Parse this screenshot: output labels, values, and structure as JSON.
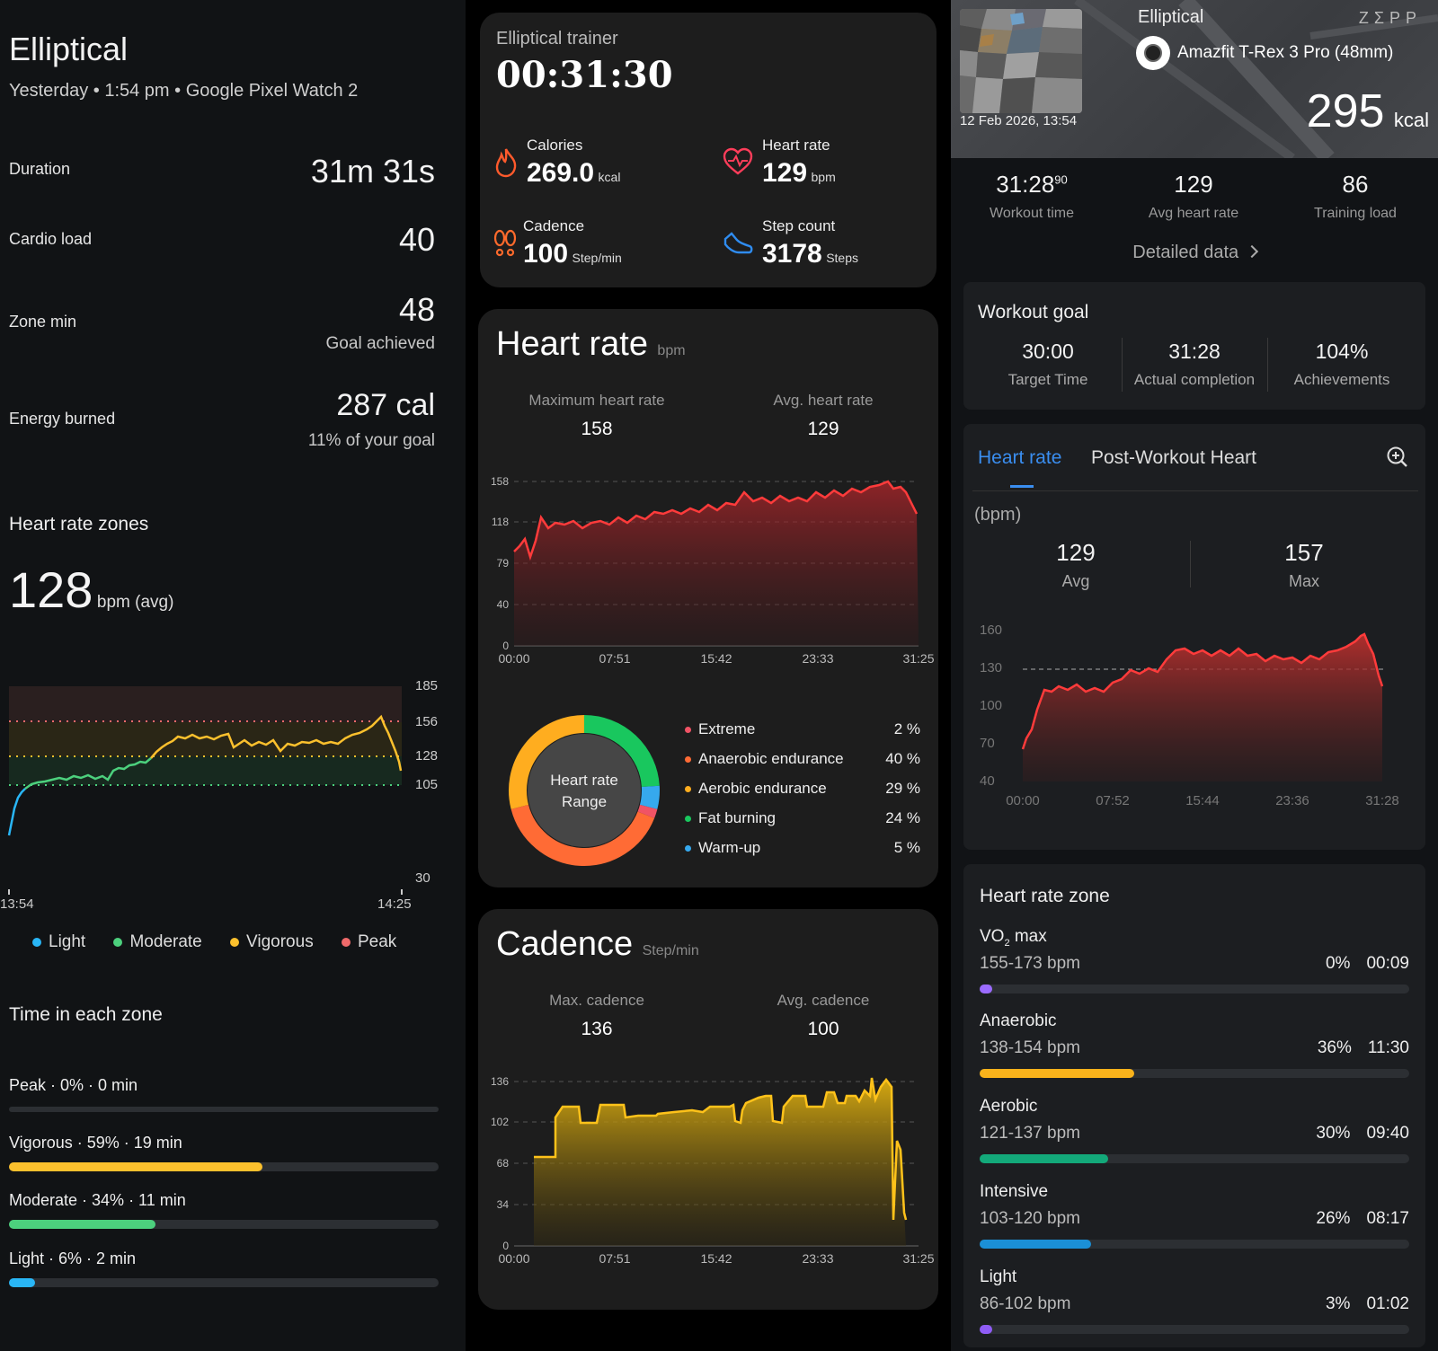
{
  "left": {
    "title": "Elliptical",
    "subtitle": "Yesterday • 1:54 pm • Google Pixel Watch 2",
    "stats": [
      {
        "label": "Duration",
        "value": "31m 31s",
        "sub": ""
      },
      {
        "label": "Cardio load",
        "value": "40",
        "sub": ""
      },
      {
        "label": "Zone min",
        "value": "48",
        "sub": "Goal achieved"
      },
      {
        "label": "Energy burned",
        "value": "287 cal",
        "sub": "11% of your goal"
      }
    ],
    "zones_heading": "Heart rate zones",
    "avg_value": "128",
    "avg_unit": "bpm (avg)",
    "chart": {
      "y_ticks": [
        "185",
        "156",
        "128",
        "105",
        "30"
      ],
      "x_ticks": [
        "13:54",
        "14:25"
      ],
      "legend": [
        {
          "name": "Light",
          "color": "#29b6f6"
        },
        {
          "name": "Moderate",
          "color": "#4cd07d"
        },
        {
          "name": "Vigorous",
          "color": "#fbc02d"
        },
        {
          "name": "Peak",
          "color": "#f06a6a"
        }
      ]
    },
    "time_heading": "Time in each zone",
    "time_zones": [
      {
        "label": "Peak · 0% · 0 min",
        "fraction": 0.0,
        "color": "#f06a6a"
      },
      {
        "label": "Vigorous · 59% · 19 min",
        "fraction": 0.59,
        "color": "#fbc02d"
      },
      {
        "label": "Moderate · 34% · 11 min",
        "fraction": 0.34,
        "color": "#4cd07d"
      },
      {
        "label": "Light · 6% · 2 min",
        "fraction": 0.06,
        "color": "#29b6f6"
      }
    ]
  },
  "middle": {
    "summary": {
      "title": "Elliptical trainer",
      "time": "00:31:30",
      "metrics": [
        {
          "label": "Calories",
          "value": "269.0",
          "unit": "kcal",
          "icon": "flame-icon"
        },
        {
          "label": "Heart rate",
          "value": "129",
          "unit": "bpm",
          "icon": "heart-icon"
        },
        {
          "label": "Cadence",
          "value": "100",
          "unit": "Step/min",
          "icon": "footprints-icon"
        },
        {
          "label": "Step count",
          "value": "3178",
          "unit": "Steps",
          "icon": "shoe-icon"
        }
      ]
    },
    "hr": {
      "title": "Heart rate",
      "unit": "bpm",
      "max_label": "Maximum heart rate",
      "max_value": "158",
      "avg_label": "Avg. heart rate",
      "avg_value": "129",
      "y_ticks": [
        "158",
        "118",
        "79",
        "40",
        "0"
      ],
      "x_ticks": [
        "00:00",
        "07:51",
        "15:42",
        "23:33",
        "31:25"
      ],
      "donut_center": [
        "Heart rate",
        "Range"
      ],
      "zones": [
        {
          "name": "Extreme",
          "pct": "2 %",
          "value": 2,
          "color": "#f05365"
        },
        {
          "name": "Anaerobic endurance",
          "pct": "40 %",
          "value": 40,
          "color": "#ff6b35"
        },
        {
          "name": "Aerobic endurance",
          "pct": "29 %",
          "value": 29,
          "color": "#ffad1f"
        },
        {
          "name": "Fat burning",
          "pct": "24 %",
          "value": 24,
          "color": "#19c75e"
        },
        {
          "name": "Warm-up",
          "pct": "5 %",
          "value": 5,
          "color": "#36a9ee"
        }
      ]
    },
    "cadence": {
      "title": "Cadence",
      "unit": "Step/min",
      "max_label": "Max. cadence",
      "max_value": "136",
      "avg_label": "Avg. cadence",
      "avg_value": "100",
      "y_ticks": [
        "136",
        "102",
        "68",
        "34",
        "0"
      ],
      "x_ticks": [
        "00:00",
        "07:51",
        "15:42",
        "23:33",
        "31:25"
      ]
    }
  },
  "right": {
    "header": {
      "activity": "Elliptical",
      "brand": "ZΣPP",
      "device": "Amazfit T-Rex 3 Pro (48mm)",
      "date": "12 Feb 2026, 13:54",
      "kcal_value": "295",
      "kcal_unit": "kcal"
    },
    "stats": [
      {
        "value": "31:28",
        "sup": "90",
        "label": "Workout time"
      },
      {
        "value": "129",
        "sup": "",
        "label": "Avg heart rate"
      },
      {
        "value": "86",
        "sup": "",
        "label": "Training load"
      }
    ],
    "detailed_link": "Detailed data",
    "goal": {
      "title": "Workout goal",
      "items": [
        {
          "value": "30:00",
          "label": "Target Time"
        },
        {
          "value": "31:28",
          "label": "Actual completion"
        },
        {
          "value": "104%",
          "label": "Achievements"
        }
      ]
    },
    "hr_tabs": [
      "Heart rate",
      "Post-Workout Heart"
    ],
    "hr_unit": "(bpm)",
    "hr_avg": {
      "value": "129",
      "label": "Avg"
    },
    "hr_max": {
      "value": "157",
      "label": "Max"
    },
    "hr_y_ticks": [
      "160",
      "130",
      "100",
      "70",
      "40"
    ],
    "hr_x_ticks": [
      "00:00",
      "07:52",
      "15:44",
      "23:36",
      "31:28"
    ],
    "zone_title": "Heart rate zone",
    "zones": [
      {
        "name": "VO",
        "name_sub": "2",
        "name_rest": " max",
        "range": "155-173 bpm",
        "pct": "0%",
        "time": "00:09",
        "fraction": 0.0,
        "color": "#9b6bff"
      },
      {
        "name": "Anaerobic",
        "name_sub": "",
        "name_rest": "",
        "range": "138-154 bpm",
        "pct": "36%",
        "time": "11:30",
        "fraction": 0.36,
        "color": "#f9b21b"
      },
      {
        "name": "Aerobic",
        "name_sub": "",
        "name_rest": "",
        "range": "121-137 bpm",
        "pct": "30%",
        "time": "09:40",
        "fraction": 0.3,
        "color": "#13a97a"
      },
      {
        "name": "Intensive",
        "name_sub": "",
        "name_rest": "",
        "range": "103-120 bpm",
        "pct": "26%",
        "time": "08:17",
        "fraction": 0.26,
        "color": "#1b8fd6"
      },
      {
        "name": "Light",
        "name_sub": "",
        "name_rest": "",
        "range": "86-102 bpm",
        "pct": "3%",
        "time": "01:02",
        "fraction": 0.03,
        "color": "#8f5cf5"
      }
    ]
  }
}
